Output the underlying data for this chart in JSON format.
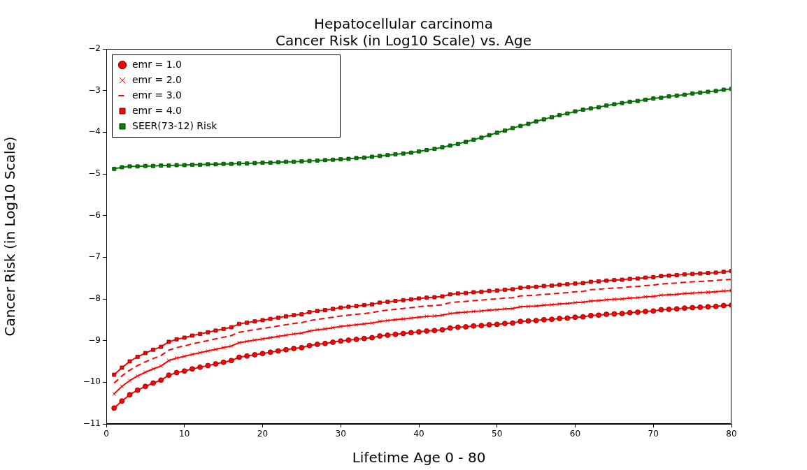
{
  "chart_data": {
    "type": "line",
    "title": "Hepatocellular carcinoma",
    "subtitle": "Cancer Risk (in Log10 Scale) vs. Age",
    "xlabel": "Lifetime Age 0 - 80",
    "ylabel": "Cancer Risk (in Log10 Scale)",
    "x": [
      1,
      2,
      3,
      4,
      5,
      6,
      7,
      8,
      9,
      10,
      11,
      12,
      13,
      14,
      15,
      16,
      17,
      18,
      19,
      20,
      21,
      22,
      23,
      24,
      25,
      26,
      27,
      28,
      29,
      30,
      31,
      32,
      33,
      34,
      35,
      36,
      37,
      38,
      39,
      40,
      41,
      42,
      43,
      44,
      45,
      46,
      47,
      48,
      49,
      50,
      51,
      52,
      53,
      54,
      55,
      56,
      57,
      58,
      59,
      60,
      61,
      62,
      63,
      64,
      65,
      66,
      67,
      68,
      69,
      70,
      71,
      72,
      73,
      74,
      75,
      76,
      77,
      78,
      79,
      80
    ],
    "series": [
      {
        "name": "emr = 1.0",
        "color": "#ff0000",
        "marker": "circle",
        "line_style": "solid",
        "values": [
          -10.62,
          -10.45,
          -10.3,
          -10.19,
          -10.1,
          -10.02,
          -9.95,
          -9.83,
          -9.77,
          -9.73,
          -9.68,
          -9.64,
          -9.6,
          -9.56,
          -9.52,
          -9.48,
          -9.4,
          -9.37,
          -9.34,
          -9.31,
          -9.28,
          -9.25,
          -9.22,
          -9.19,
          -9.17,
          -9.12,
          -9.09,
          -9.07,
          -9.04,
          -9.01,
          -8.99,
          -8.97,
          -8.95,
          -8.93,
          -8.89,
          -8.87,
          -8.85,
          -8.83,
          -8.81,
          -8.79,
          -8.77,
          -8.76,
          -8.74,
          -8.7,
          -8.68,
          -8.67,
          -8.65,
          -8.64,
          -8.62,
          -8.61,
          -8.59,
          -8.58,
          -8.54,
          -8.53,
          -8.52,
          -8.5,
          -8.49,
          -8.47,
          -8.46,
          -8.44,
          -8.43,
          -8.4,
          -8.39,
          -8.37,
          -8.36,
          -8.35,
          -8.33,
          -8.32,
          -8.3,
          -8.29,
          -8.26,
          -8.25,
          -8.24,
          -8.22,
          -8.21,
          -8.2,
          -8.19,
          -8.18,
          -8.16,
          -8.15
        ]
      },
      {
        "name": "emr = 2.0",
        "color": "#ff0000",
        "marker": "cross",
        "line_style": "solid",
        "values": [
          -10.28,
          -10.1,
          -9.96,
          -9.85,
          -9.76,
          -9.68,
          -9.61,
          -9.48,
          -9.42,
          -9.38,
          -9.33,
          -9.29,
          -9.25,
          -9.21,
          -9.17,
          -9.13,
          -9.05,
          -9.02,
          -8.99,
          -8.96,
          -8.93,
          -8.9,
          -8.87,
          -8.84,
          -8.82,
          -8.77,
          -8.74,
          -8.72,
          -8.69,
          -8.66,
          -8.64,
          -8.62,
          -8.6,
          -8.58,
          -8.54,
          -8.52,
          -8.5,
          -8.48,
          -8.46,
          -8.44,
          -8.42,
          -8.41,
          -8.39,
          -8.35,
          -8.33,
          -8.32,
          -8.3,
          -8.29,
          -8.27,
          -8.26,
          -8.24,
          -8.23,
          -8.19,
          -8.18,
          -8.17,
          -8.15,
          -8.14,
          -8.12,
          -8.11,
          -8.09,
          -8.08,
          -8.05,
          -8.04,
          -8.02,
          -8.01,
          -8.0,
          -7.98,
          -7.97,
          -7.95,
          -7.94,
          -7.91,
          -7.9,
          -7.89,
          -7.87,
          -7.86,
          -7.85,
          -7.84,
          -7.83,
          -7.81,
          -7.8
        ]
      },
      {
        "name": "emr = 3.0",
        "color": "#ff0000",
        "marker": "none",
        "line_style": "dashed",
        "values": [
          -10.02,
          -9.85,
          -9.71,
          -9.6,
          -9.51,
          -9.43,
          -9.36,
          -9.23,
          -9.17,
          -9.13,
          -9.08,
          -9.04,
          -9.0,
          -8.96,
          -8.92,
          -8.88,
          -8.8,
          -8.77,
          -8.74,
          -8.71,
          -8.68,
          -8.65,
          -8.62,
          -8.59,
          -8.57,
          -8.52,
          -8.49,
          -8.47,
          -8.44,
          -8.41,
          -8.39,
          -8.37,
          -8.35,
          -8.33,
          -8.29,
          -8.27,
          -8.25,
          -8.23,
          -8.21,
          -8.19,
          -8.17,
          -8.16,
          -8.14,
          -8.09,
          -8.07,
          -8.06,
          -8.04,
          -8.03,
          -8.01,
          -8.0,
          -7.98,
          -7.97,
          -7.93,
          -7.92,
          -7.91,
          -7.89,
          -7.88,
          -7.86,
          -7.85,
          -7.83,
          -7.82,
          -7.78,
          -7.77,
          -7.75,
          -7.74,
          -7.73,
          -7.71,
          -7.7,
          -7.68,
          -7.67,
          -7.64,
          -7.63,
          -7.62,
          -7.6,
          -7.59,
          -7.58,
          -7.57,
          -7.56,
          -7.54,
          -7.53
        ]
      },
      {
        "name": "emr = 4.0",
        "color": "#ff0000",
        "marker": "square",
        "line_style": "solid",
        "values": [
          -9.82,
          -9.65,
          -9.5,
          -9.39,
          -9.3,
          -9.22,
          -9.15,
          -9.03,
          -8.97,
          -8.93,
          -8.88,
          -8.84,
          -8.8,
          -8.76,
          -8.72,
          -8.68,
          -8.6,
          -8.57,
          -8.54,
          -8.51,
          -8.48,
          -8.45,
          -8.42,
          -8.39,
          -8.37,
          -8.32,
          -8.29,
          -8.27,
          -8.24,
          -8.21,
          -8.19,
          -8.17,
          -8.15,
          -8.13,
          -8.09,
          -8.07,
          -8.05,
          -8.03,
          -8.01,
          -7.99,
          -7.97,
          -7.96,
          -7.94,
          -7.89,
          -7.87,
          -7.86,
          -7.84,
          -7.83,
          -7.81,
          -7.8,
          -7.78,
          -7.77,
          -7.73,
          -7.72,
          -7.71,
          -7.69,
          -7.68,
          -7.66,
          -7.65,
          -7.63,
          -7.62,
          -7.59,
          -7.58,
          -7.56,
          -7.55,
          -7.54,
          -7.52,
          -7.51,
          -7.49,
          -7.48,
          -7.45,
          -7.44,
          -7.43,
          -7.41,
          -7.4,
          -7.39,
          -7.38,
          -7.37,
          -7.35,
          -7.33
        ]
      },
      {
        "name": "SEER(73-12) Risk",
        "color": "#008000",
        "marker": "square",
        "line_style": "solid",
        "values": [
          -4.88,
          -4.84,
          -4.82,
          -4.82,
          -4.81,
          -4.81,
          -4.8,
          -4.8,
          -4.79,
          -4.79,
          -4.78,
          -4.78,
          -4.77,
          -4.77,
          -4.76,
          -4.76,
          -4.75,
          -4.75,
          -4.74,
          -4.73,
          -4.73,
          -4.72,
          -4.71,
          -4.71,
          -4.7,
          -4.69,
          -4.68,
          -4.67,
          -4.66,
          -4.65,
          -4.64,
          -4.62,
          -4.61,
          -4.59,
          -4.57,
          -4.55,
          -4.53,
          -4.51,
          -4.49,
          -4.46,
          -4.43,
          -4.4,
          -4.36,
          -4.32,
          -4.28,
          -4.23,
          -4.18,
          -4.13,
          -4.07,
          -4.01,
          -3.96,
          -3.9,
          -3.85,
          -3.8,
          -3.74,
          -3.69,
          -3.64,
          -3.59,
          -3.55,
          -3.5,
          -3.46,
          -3.43,
          -3.4,
          -3.36,
          -3.33,
          -3.3,
          -3.27,
          -3.25,
          -3.22,
          -3.19,
          -3.17,
          -3.14,
          -3.12,
          -3.1,
          -3.07,
          -3.05,
          -3.03,
          -3.01,
          -2.98,
          -2.96
        ]
      }
    ],
    "xlim": [
      0,
      80
    ],
    "xticks": [
      0,
      10,
      20,
      30,
      40,
      50,
      60,
      70,
      80
    ],
    "ylim": [
      -11,
      -2
    ],
    "yticks": [
      -11,
      -10,
      -9,
      -8,
      -7,
      -6,
      -5,
      -4,
      -3,
      -2
    ],
    "grid": false,
    "legend": "top left"
  }
}
